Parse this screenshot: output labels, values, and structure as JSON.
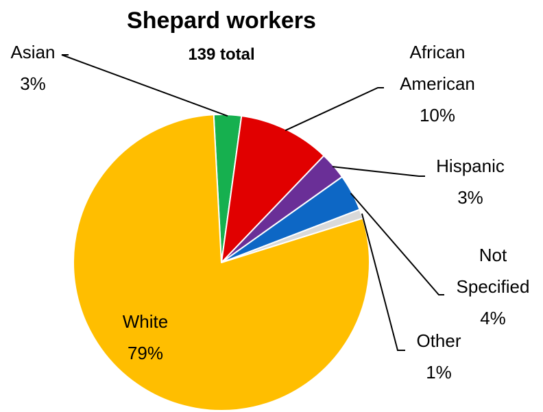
{
  "chart_data": {
    "type": "pie",
    "title": "Shepard workers",
    "subtitle": "139 total",
    "start_angle_deg": -3,
    "direction": "clockwise",
    "slices": [
      {
        "label": "Asian",
        "value": 3,
        "percent_label": "3%",
        "color": "#16B04F"
      },
      {
        "label": "African American",
        "value": 10,
        "percent_label": "10%",
        "color": "#E10000"
      },
      {
        "label": "Hispanic",
        "value": 3,
        "percent_label": "3%",
        "color": "#6A2F97"
      },
      {
        "label": "Not Specified",
        "value": 4,
        "percent_label": "4%",
        "color": "#0D67C5"
      },
      {
        "label": "Other",
        "value": 1,
        "percent_label": "1%",
        "color": "#D9D9D9"
      },
      {
        "label": "White",
        "value": 79,
        "percent_label": "79%",
        "color": "#FFBE00"
      }
    ]
  }
}
